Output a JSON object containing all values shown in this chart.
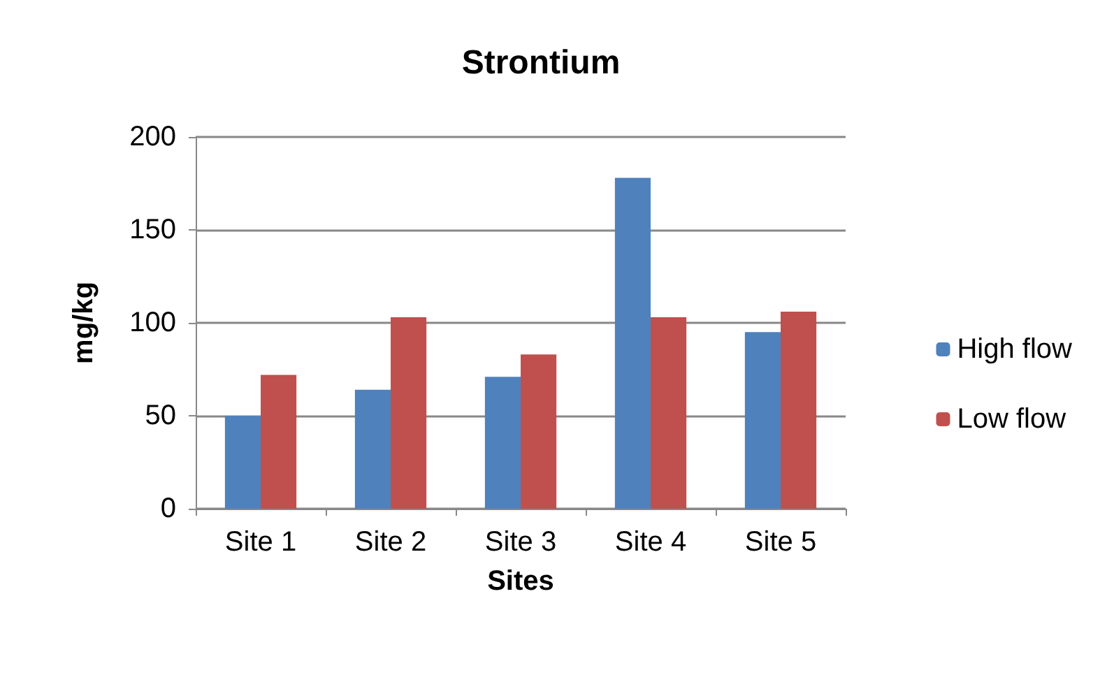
{
  "chart_data": {
    "type": "bar",
    "title": "Strontium",
    "xlabel": "Sites",
    "ylabel": "mg/kg",
    "categories": [
      "Site 1",
      "Site 2",
      "Site 3",
      "Site 4",
      "Site 5"
    ],
    "series": [
      {
        "name": "High flow",
        "color": "#4f81bd",
        "values": [
          50,
          64,
          71,
          178,
          95
        ]
      },
      {
        "name": "Low flow",
        "color": "#c0504d",
        "values": [
          72,
          103,
          83,
          103,
          106
        ]
      }
    ],
    "ylim": [
      0,
      200
    ],
    "yticks": [
      0,
      50,
      100,
      150,
      200
    ],
    "grid": "y",
    "legend": "right"
  }
}
